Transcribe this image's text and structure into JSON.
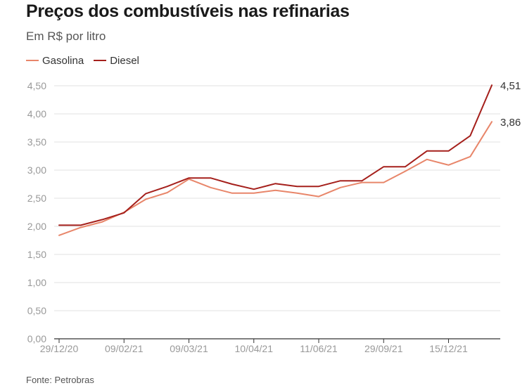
{
  "title": "Preços dos combustíveis nas refinarias",
  "subtitle": "Em R$ por litro",
  "source": "Fonte: Petrobras",
  "colors": {
    "gasolina": "#e8866a",
    "diesel": "#a5201c",
    "grid": "#e2e2e2",
    "axis": "#333333",
    "tick": "#999999"
  },
  "legend": [
    {
      "name": "Gasolina",
      "color": "#e8866a"
    },
    {
      "name": "Diesel",
      "color": "#a5201c"
    }
  ],
  "chart_data": {
    "type": "line",
    "title": "Preços dos combustíveis nas refinarias",
    "subtitle": "Em R$ por litro",
    "ylim": [
      0,
      4.5
    ],
    "grid": true,
    "legend_position": "top-left",
    "y_ticks": [
      "0,00",
      "0,50",
      "1,00",
      "1,50",
      "2,00",
      "2,50",
      "3,00",
      "3,50",
      "4,00",
      "4,50"
    ],
    "x_tick_labels": [
      "29/12/20",
      "09/02/21",
      "09/03/21",
      "10/04/21",
      "11/06/21",
      "29/09/21",
      "15/12/21"
    ],
    "x_tick_positions": [
      0,
      3,
      6,
      9,
      12,
      15,
      18
    ],
    "x_count": 21,
    "series": [
      {
        "name": "Gasolina",
        "values": [
          1.84,
          1.98,
          2.08,
          2.25,
          2.48,
          2.6,
          2.84,
          2.69,
          2.59,
          2.59,
          2.64,
          2.59,
          2.53,
          2.69,
          2.78,
          2.78,
          2.98,
          3.19,
          3.09,
          3.24,
          3.86
        ]
      },
      {
        "name": "Diesel",
        "values": [
          2.02,
          2.02,
          2.12,
          2.24,
          2.58,
          2.71,
          2.86,
          2.86,
          2.75,
          2.66,
          2.76,
          2.71,
          2.71,
          2.81,
          2.81,
          3.06,
          3.06,
          3.34,
          3.34,
          3.61,
          4.51
        ]
      }
    ],
    "end_labels": {
      "Diesel": "4,51",
      "Gasolina": "3,86"
    }
  }
}
